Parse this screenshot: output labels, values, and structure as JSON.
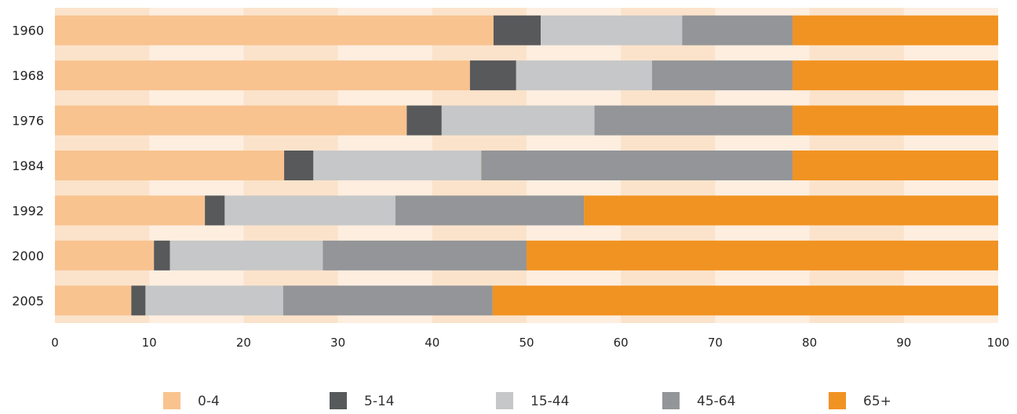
{
  "chart_data": {
    "type": "bar",
    "orientation": "horizontal",
    "stacked": true,
    "categories": [
      "1960",
      "1968",
      "1976",
      "1984",
      "1992",
      "2000",
      "2005"
    ],
    "series": [
      {
        "name": "0-4",
        "color": "#f8c38f",
        "values": [
          46.5,
          44.0,
          37.3,
          24.3,
          15.9,
          10.5,
          8.1
        ]
      },
      {
        "name": "5-14",
        "color": "#58595b",
        "values": [
          5.0,
          4.9,
          3.7,
          3.1,
          2.1,
          1.7,
          1.5
        ]
      },
      {
        "name": "15-44",
        "color": "#c6c7c8",
        "values": [
          15.0,
          14.4,
          16.2,
          17.8,
          18.1,
          16.2,
          14.6
        ]
      },
      {
        "name": "45-64",
        "color": "#939598",
        "values": [
          11.7,
          14.9,
          21.0,
          33.0,
          20.0,
          21.6,
          22.2
        ]
      },
      {
        "name": "65+",
        "color": "#f19322",
        "values": [
          21.8,
          21.8,
          21.8,
          21.8,
          43.9,
          50.0,
          53.6
        ]
      }
    ],
    "x_ticks": [
      "0",
      "10",
      "20",
      "30",
      "40",
      "50",
      "60",
      "70",
      "80",
      "90",
      "100"
    ],
    "xlim": [
      0,
      100
    ],
    "title": "",
    "xlabel": "",
    "ylabel": "",
    "grid": "vertical bands",
    "legend_position": "bottom",
    "background_color": "#fdeee0",
    "band_color": "#fbe3cb"
  }
}
